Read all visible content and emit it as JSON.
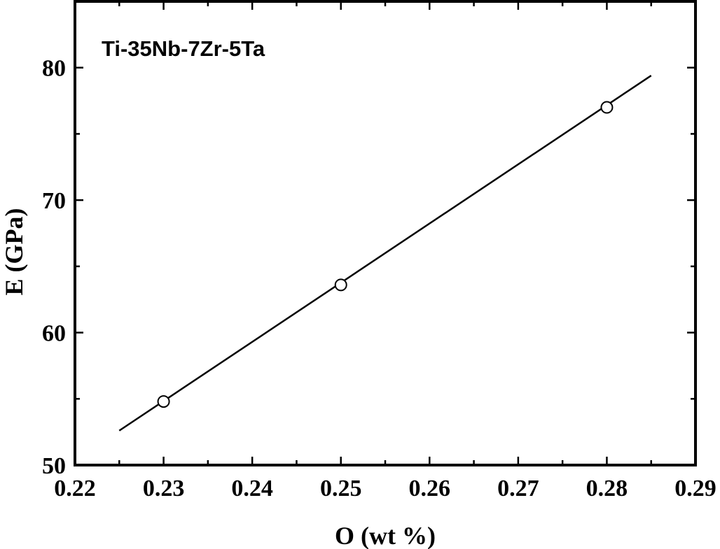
{
  "chart_data": {
    "type": "scatter",
    "title": "",
    "annotation": "Ti-35Nb-7Zr-5Ta",
    "xlabel": "O (wt %)",
    "ylabel": "E (GPa)",
    "xlim": [
      0.22,
      0.29
    ],
    "ylim": [
      50,
      85
    ],
    "x_ticks": [
      0.22,
      0.23,
      0.24,
      0.25,
      0.26,
      0.27,
      0.28,
      0.29
    ],
    "x_tick_labels": [
      "0.22",
      "0.23",
      "0.24",
      "0.25",
      "0.26",
      "0.27",
      "0.28",
      "0.29"
    ],
    "y_ticks": [
      50,
      60,
      70,
      80
    ],
    "y_tick_labels": [
      "50",
      "60",
      "70",
      "80"
    ],
    "grid": false,
    "legend": "none",
    "series": [
      {
        "marker": "open-circle",
        "x": [
          0.23,
          0.25,
          0.28
        ],
        "y": [
          54.8,
          63.6,
          77.0
        ]
      }
    ],
    "fit_line": {
      "x": [
        0.225,
        0.285
      ],
      "y": [
        52.6,
        79.4
      ]
    }
  }
}
